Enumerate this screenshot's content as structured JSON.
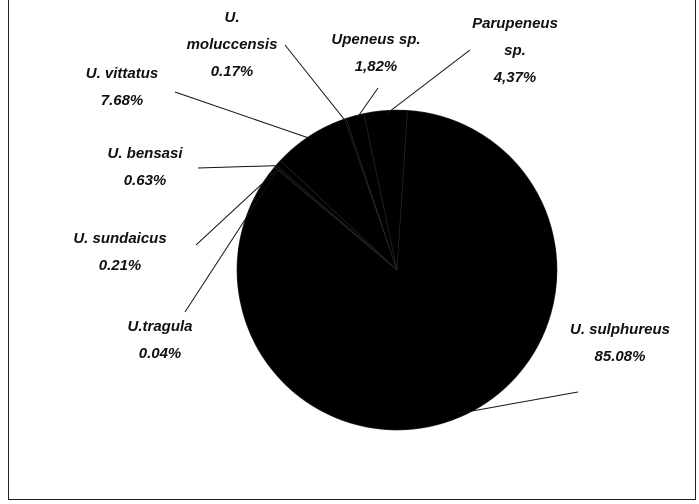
{
  "chart_data": {
    "type": "pie",
    "categories": [
      "Parupeneus sp.",
      "U. sulphureus",
      "U.tragula",
      "U. sundaicus",
      "U. bensasi",
      "U. vittatus",
      "U. moluccensis",
      "Upeneus sp."
    ],
    "values": [
      4.37,
      85.08,
      0.04,
      0.21,
      0.63,
      7.68,
      0.17,
      1.82
    ],
    "value_labels": [
      "4,37%",
      "85.08%",
      "0.04%",
      "0.21%",
      "0.63%",
      "7.68%",
      "0.17%",
      "1,82%"
    ],
    "color": "#000000"
  }
}
